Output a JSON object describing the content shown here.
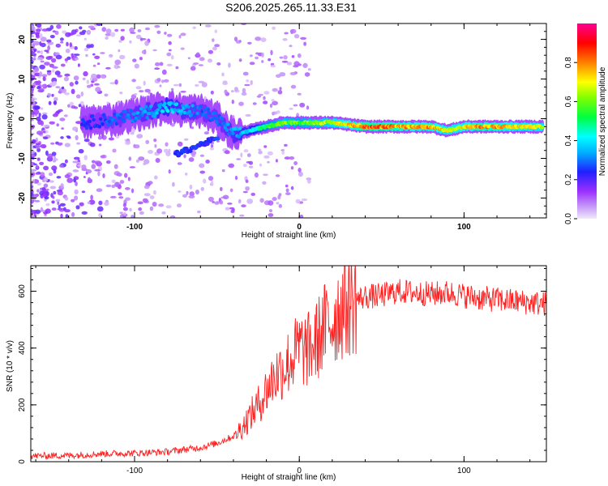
{
  "title": "S206.2025.265.11.33.E31",
  "chart_data": [
    {
      "type": "heatmap",
      "xlabel": "Height of straight line (km)",
      "ylabel": "Frequency (Hz)",
      "xlim": [
        -163,
        150
      ],
      "ylim": [
        -25,
        24
      ],
      "x_ticks": [
        "-100",
        "0",
        "100"
      ],
      "y_ticks": [
        "20",
        "10",
        "0",
        "-10",
        "-20"
      ],
      "colorbar": {
        "label": "Normalized spectral amplitude",
        "range": [
          0,
          1
        ],
        "ticks": [
          "0.0",
          "0.2",
          "0.4",
          "0.6",
          "0.8"
        ],
        "colors": [
          "#e8e0f8",
          "#9b30ff",
          "#2020ff",
          "#00ffff",
          "#00ff00",
          "#ffff00",
          "#ff8000",
          "#ff0000",
          "#ff0090"
        ]
      },
      "ridge": {
        "x": [
          -130,
          -110,
          -90,
          -80,
          -70,
          -60,
          -50,
          -40,
          -30,
          -20,
          -10,
          0,
          10,
          20,
          40,
          60,
          70,
          80,
          90,
          100,
          110,
          120,
          130,
          145
        ],
        "y": [
          -1,
          0,
          2,
          3,
          2,
          2,
          0,
          -4,
          -3,
          -2,
          -1,
          -1,
          -1,
          -1,
          -2,
          -2,
          -2,
          -2,
          -3,
          -2,
          -2,
          -2,
          -2,
          -2
        ],
        "amplitude": [
          0.25,
          0.3,
          0.35,
          0.4,
          0.35,
          0.3,
          0.3,
          0.35,
          0.4,
          0.55,
          0.65,
          0.6,
          0.65,
          0.7,
          0.85,
          0.82,
          0.78,
          0.8,
          0.72,
          0.75,
          0.82,
          0.8,
          0.75,
          0.72
        ]
      }
    },
    {
      "type": "line",
      "xlabel": "Height of straight line (km)",
      "ylabel": "SNR (10 * v/v)",
      "xlim": [
        -163,
        150
      ],
      "ylim": [
        0,
        690
      ],
      "x_ticks": [
        "-100",
        "0",
        "100"
      ],
      "y_ticks": [
        "0",
        "200",
        "400",
        "600"
      ],
      "color": "#ff2020",
      "series": [
        {
          "name": "SNR",
          "x": [
            -163,
            -140,
            -120,
            -100,
            -80,
            -60,
            -50,
            -40,
            -35,
            -30,
            -25,
            -20,
            -15,
            -10,
            -5,
            0,
            5,
            10,
            15,
            20,
            25,
            30,
            40,
            50,
            60,
            70,
            80,
            90,
            100,
            110,
            120,
            130,
            140,
            150
          ],
          "values": [
            20,
            22,
            28,
            30,
            35,
            50,
            65,
            90,
            120,
            160,
            200,
            250,
            300,
            330,
            360,
            400,
            390,
            420,
            470,
            500,
            540,
            560,
            580,
            585,
            600,
            595,
            590,
            595,
            585,
            575,
            570,
            565,
            560,
            555
          ]
        }
      ]
    }
  ]
}
